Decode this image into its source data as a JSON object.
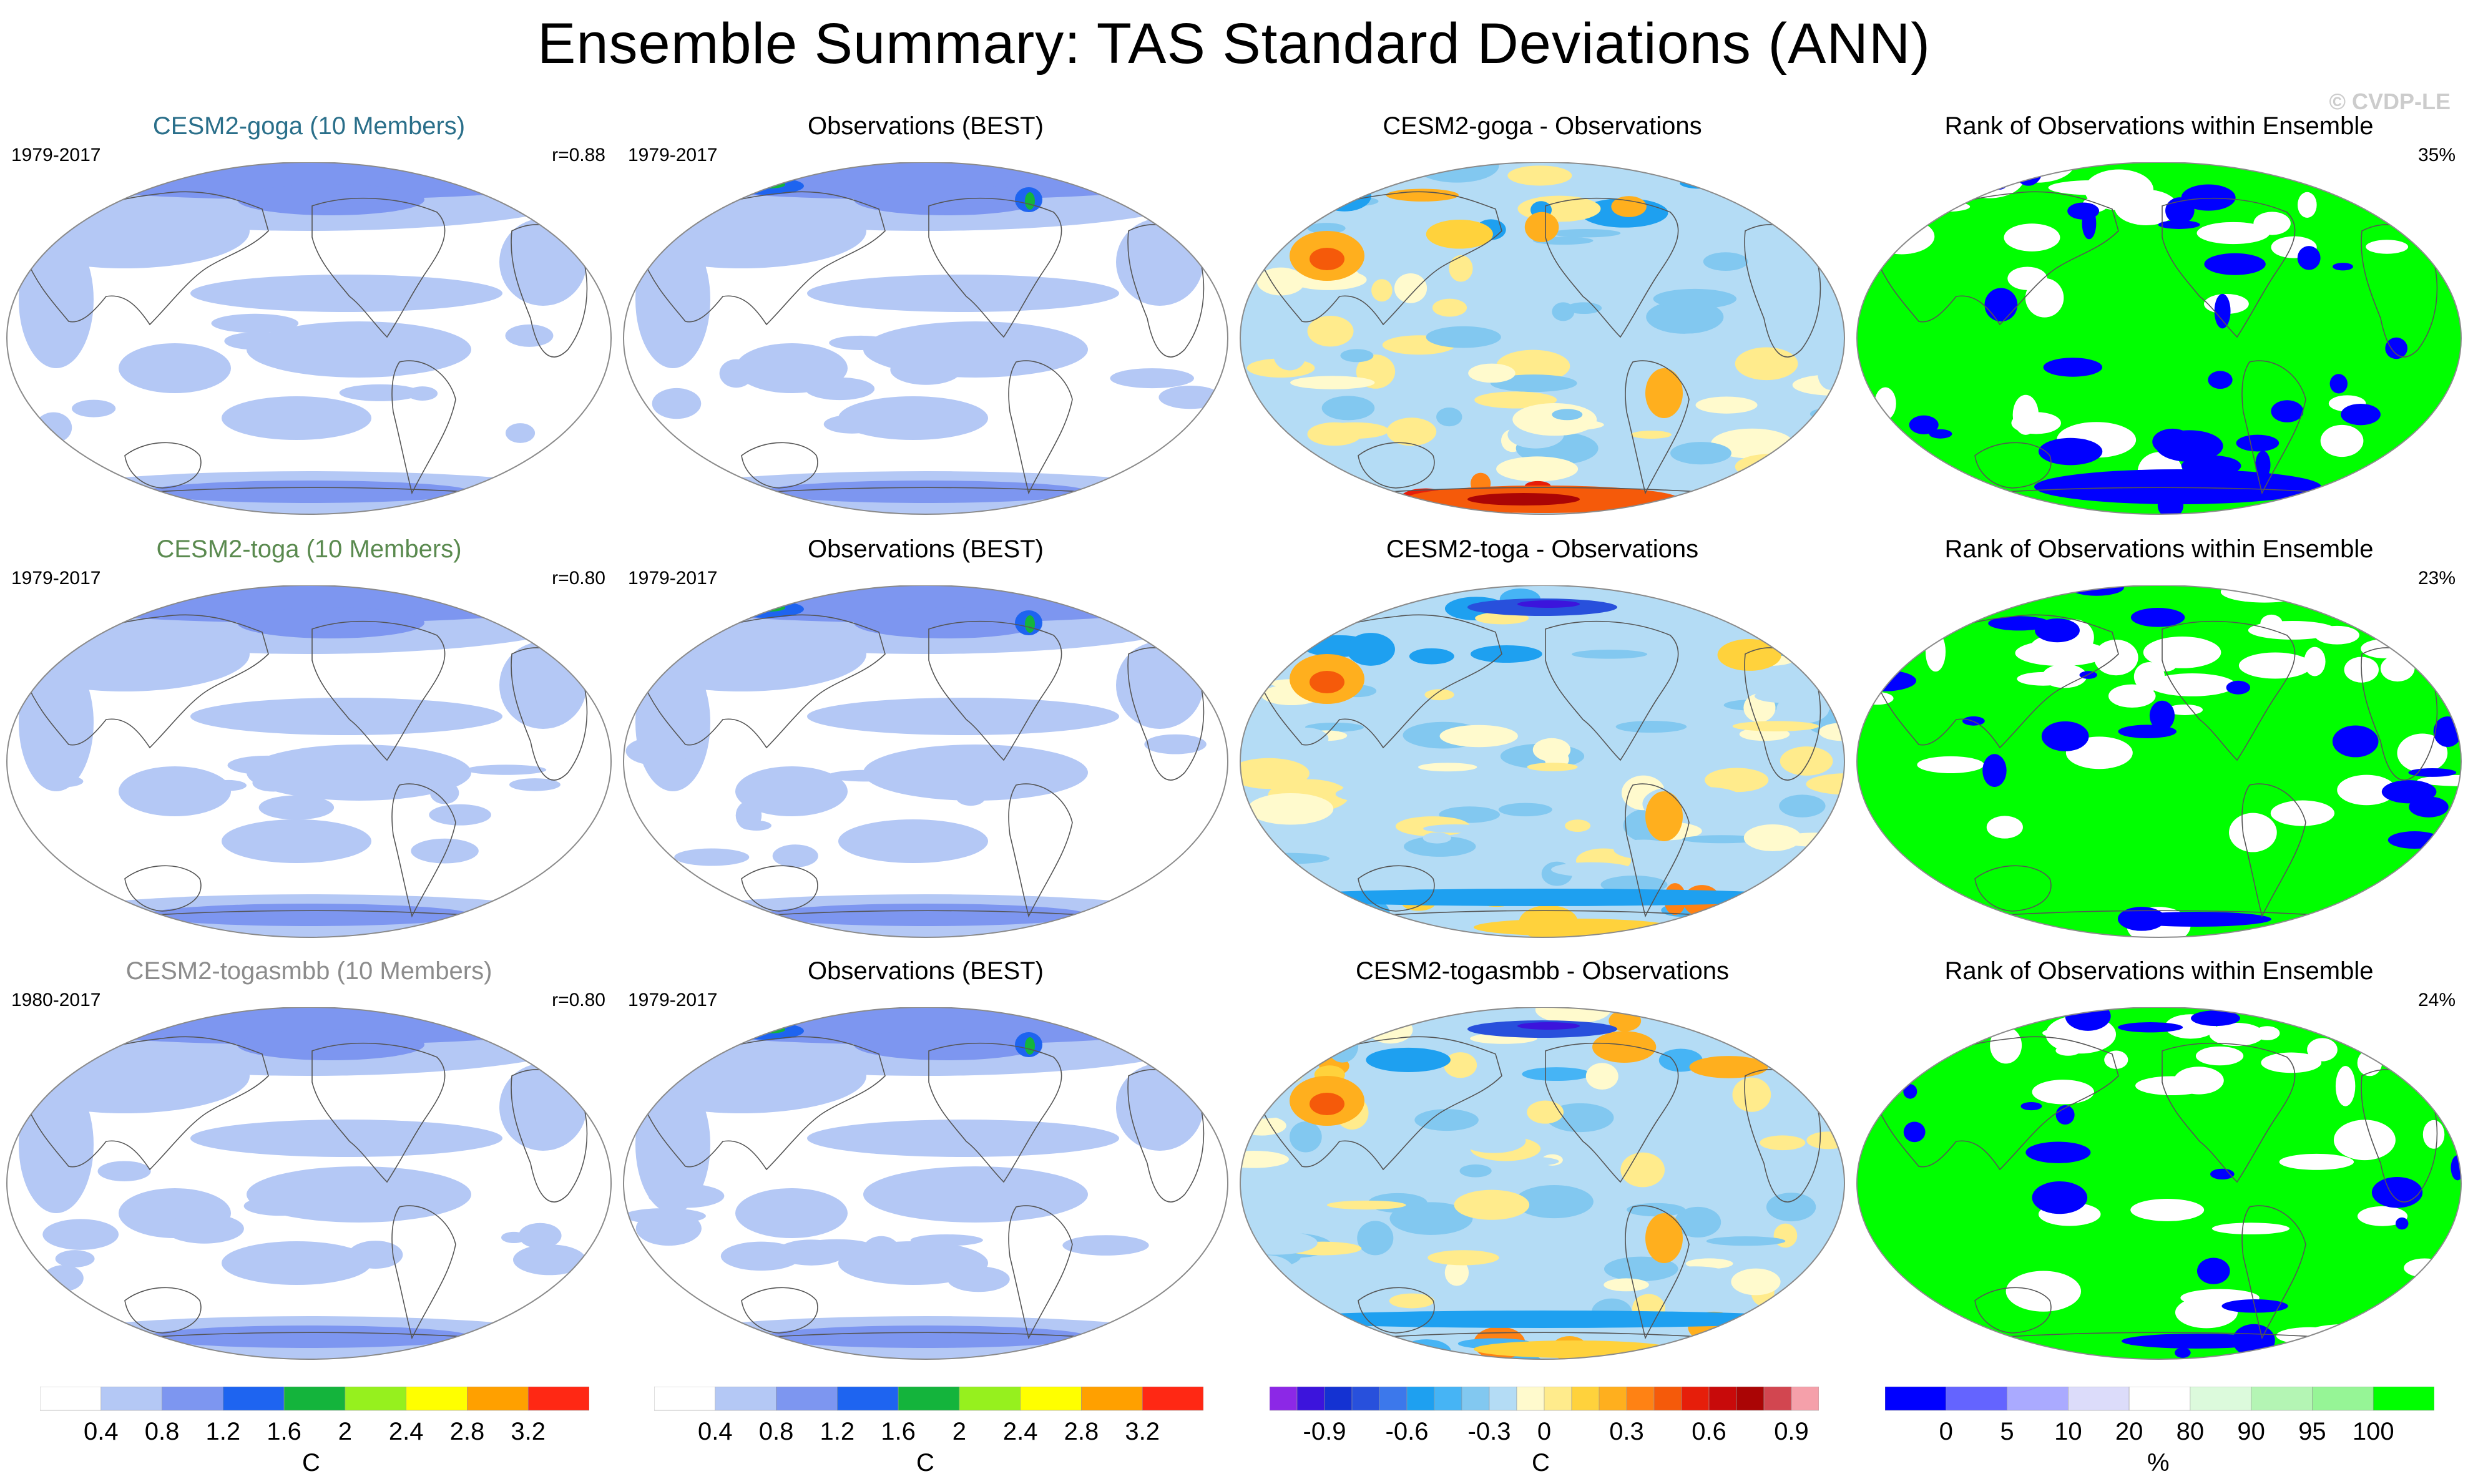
{
  "title": "Ensemble Summary: TAS Standard Deviations (ANN)",
  "copyright": "© CVDP-LE",
  "rows": [
    {
      "model": {
        "title": "CESM2-goga (10 Members)",
        "title_color": "#2a6f8a",
        "period": "1979-2017",
        "corr": "r=0.88"
      },
      "obs": {
        "title": "Observations (BEST)",
        "period": "1979-2017"
      },
      "diff": {
        "title": "CESM2-goga - Observations"
      },
      "rank": {
        "title": "Rank of Observations within Ensemble",
        "pct": "35%"
      }
    },
    {
      "model": {
        "title": "CESM2-toga (10 Members)",
        "title_color": "#5a8a4f",
        "period": "1979-2017",
        "corr": "r=0.80"
      },
      "obs": {
        "title": "Observations (BEST)",
        "period": "1979-2017"
      },
      "diff": {
        "title": "CESM2-toga - Observations"
      },
      "rank": {
        "title": "Rank of Observations within Ensemble",
        "pct": "23%"
      }
    },
    {
      "model": {
        "title": "CESM2-togasmbb (10 Members)",
        "title_color": "#8c8c8c",
        "period": "1980-2017",
        "corr": "r=0.80"
      },
      "obs": {
        "title": "Observations (BEST)",
        "period": "1979-2017"
      },
      "diff": {
        "title": "CESM2-togasmbb - Observations"
      },
      "rank": {
        "title": "Rank of Observations within Ensemble",
        "pct": "24%"
      }
    }
  ],
  "chart_data": {
    "type": "heatmap",
    "projection": "Robinson global maps, 3 rows x 4 columns",
    "colorbars": [
      {
        "id": "std",
        "unit": "C",
        "colors": [
          "#ffffff",
          "#b4c8f5",
          "#7d96f0",
          "#1e64f0",
          "#14b43c",
          "#96f01e",
          "#ffff00",
          "#ffa000",
          "#ff2814"
        ],
        "tick_labels": [
          "0.4",
          "0.8",
          "1.2",
          "1.6",
          "2",
          "2.4",
          "2.8",
          "3.2"
        ]
      },
      {
        "id": "std2",
        "unit": "C",
        "colors": [
          "#ffffff",
          "#b4c8f5",
          "#7d96f0",
          "#1e64f0",
          "#14b43c",
          "#96f01e",
          "#ffff00",
          "#ffa000",
          "#ff2814"
        ],
        "tick_labels": [
          "0.4",
          "0.8",
          "1.2",
          "1.6",
          "2",
          "2.4",
          "2.8",
          "3.2"
        ]
      },
      {
        "id": "diff",
        "unit": "C",
        "colors": [
          "#8c28e6",
          "#3c14dc",
          "#1432d2",
          "#2850dc",
          "#3c78eb",
          "#1ea0f0",
          "#46b4f5",
          "#82c8f0",
          "#b4dcf5",
          "#fffacd",
          "#ffeb8c",
          "#ffd23c",
          "#ffaf1e",
          "#ff8214",
          "#f55a0a",
          "#e61e0a",
          "#c80a0a",
          "#aa0505",
          "#d24650",
          "#f5a0aa"
        ],
        "tick_labels": [
          "-0.9",
          "-0.6",
          "-0.3",
          "0",
          "0.3",
          "0.6",
          "0.9"
        ]
      },
      {
        "id": "rank",
        "unit": "%",
        "colors": [
          "#0000ff",
          "#6464ff",
          "#aaaaff",
          "#dcdcfa",
          "#ffffff",
          "#dcfadc",
          "#b4f5b4",
          "#96f596",
          "#00ff00"
        ],
        "tick_labels": [
          "0",
          "5",
          "10",
          "20",
          "80",
          "90",
          "95",
          "100"
        ]
      }
    ]
  }
}
